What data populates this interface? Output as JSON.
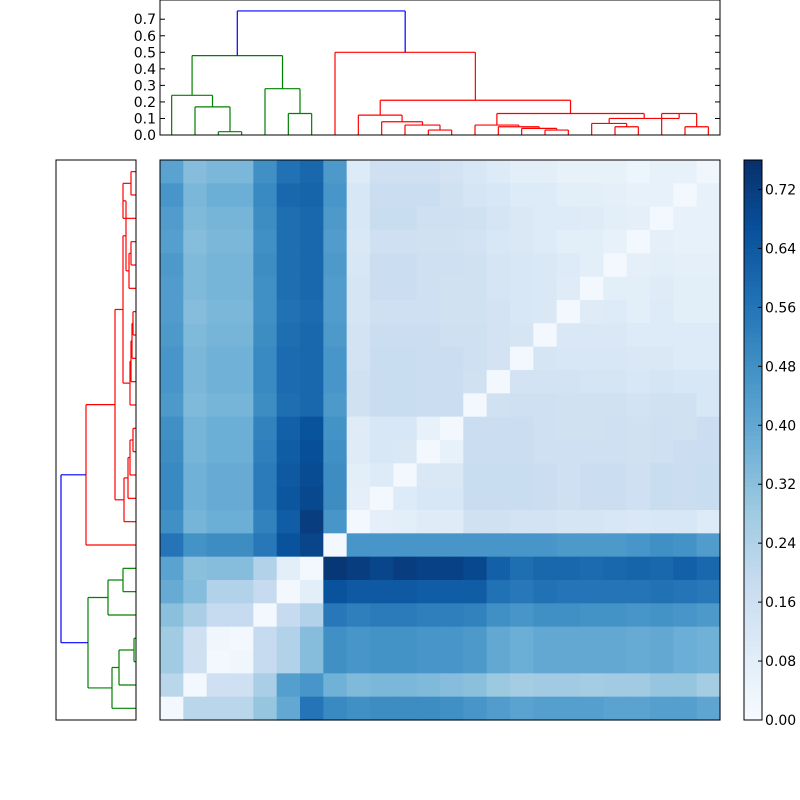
{
  "chart_data": {
    "type": "heatmap",
    "title": "",
    "size": 24,
    "colormap": "Blues",
    "colorbar": {
      "vmin": 0.0,
      "vmax": 0.76,
      "ticks": [
        "0.00",
        "0.08",
        "0.16",
        "0.24",
        "0.32",
        "0.40",
        "0.48",
        "0.56",
        "0.64",
        "0.72"
      ]
    },
    "dendrogram_top": {
      "ylim": [
        0,
        0.78
      ],
      "ticks": [
        "0.0",
        "0.1",
        "0.2",
        "0.3",
        "0.4",
        "0.5",
        "0.6",
        "0.7"
      ],
      "colors": {
        "cluster_a": "#008000",
        "cluster_b": "#ff0000",
        "root": "#0000ff"
      }
    },
    "dendrogram_left": {
      "colors": {
        "cluster_a": "#008000",
        "cluster_b": "#ff0000",
        "root": "#0000ff"
      }
    },
    "cluster_sizes": {
      "cluster_a": 7,
      "cluster_b": 17
    },
    "matrix": [
      [
        0.42,
        0.33,
        0.35,
        0.35,
        0.48,
        0.57,
        0.6,
        0.45,
        0.1,
        0.16,
        0.16,
        0.16,
        0.14,
        0.12,
        0.1,
        0.08,
        0.08,
        0.06,
        0.06,
        0.06,
        0.04,
        0.06,
        0.06,
        0.03
      ],
      [
        0.46,
        0.35,
        0.38,
        0.38,
        0.5,
        0.6,
        0.61,
        0.46,
        0.12,
        0.17,
        0.17,
        0.17,
        0.15,
        0.13,
        0.12,
        0.1,
        0.1,
        0.08,
        0.08,
        0.07,
        0.06,
        0.06,
        0.02,
        0.06
      ],
      [
        0.44,
        0.34,
        0.36,
        0.36,
        0.49,
        0.58,
        0.6,
        0.45,
        0.12,
        0.18,
        0.18,
        0.16,
        0.16,
        0.15,
        0.13,
        0.11,
        0.1,
        0.1,
        0.09,
        0.08,
        0.07,
        0.02,
        0.06,
        0.06
      ],
      [
        0.43,
        0.33,
        0.35,
        0.35,
        0.48,
        0.58,
        0.6,
        0.44,
        0.11,
        0.16,
        0.16,
        0.15,
        0.15,
        0.14,
        0.12,
        0.11,
        0.1,
        0.08,
        0.08,
        0.06,
        0.02,
        0.07,
        0.06,
        0.06
      ],
      [
        0.45,
        0.34,
        0.36,
        0.36,
        0.49,
        0.58,
        0.6,
        0.45,
        0.12,
        0.17,
        0.17,
        0.16,
        0.16,
        0.15,
        0.13,
        0.12,
        0.11,
        0.1,
        0.08,
        0.02,
        0.07,
        0.08,
        0.07,
        0.07
      ],
      [
        0.44,
        0.34,
        0.36,
        0.36,
        0.48,
        0.58,
        0.6,
        0.44,
        0.13,
        0.17,
        0.17,
        0.16,
        0.15,
        0.15,
        0.13,
        0.12,
        0.11,
        0.09,
        0.02,
        0.08,
        0.08,
        0.09,
        0.08,
        0.08
      ],
      [
        0.44,
        0.33,
        0.35,
        0.35,
        0.48,
        0.57,
        0.59,
        0.44,
        0.13,
        0.16,
        0.16,
        0.16,
        0.15,
        0.15,
        0.14,
        0.12,
        0.11,
        0.02,
        0.09,
        0.1,
        0.08,
        0.1,
        0.08,
        0.08
      ],
      [
        0.45,
        0.34,
        0.36,
        0.36,
        0.49,
        0.58,
        0.6,
        0.45,
        0.14,
        0.17,
        0.17,
        0.17,
        0.16,
        0.16,
        0.14,
        0.13,
        0.02,
        0.11,
        0.11,
        0.11,
        0.1,
        0.1,
        0.1,
        0.1
      ],
      [
        0.46,
        0.35,
        0.37,
        0.37,
        0.5,
        0.59,
        0.6,
        0.46,
        0.14,
        0.18,
        0.18,
        0.17,
        0.17,
        0.16,
        0.14,
        0.02,
        0.13,
        0.12,
        0.12,
        0.12,
        0.11,
        0.11,
        0.1,
        0.1
      ],
      [
        0.46,
        0.35,
        0.37,
        0.37,
        0.5,
        0.59,
        0.6,
        0.46,
        0.15,
        0.18,
        0.18,
        0.17,
        0.17,
        0.15,
        0.02,
        0.14,
        0.14,
        0.14,
        0.13,
        0.13,
        0.12,
        0.13,
        0.12,
        0.12
      ],
      [
        0.45,
        0.34,
        0.36,
        0.36,
        0.49,
        0.58,
        0.6,
        0.45,
        0.15,
        0.18,
        0.18,
        0.17,
        0.17,
        0.02,
        0.15,
        0.16,
        0.16,
        0.15,
        0.15,
        0.15,
        0.14,
        0.15,
        0.15,
        0.12
      ],
      [
        0.48,
        0.36,
        0.38,
        0.38,
        0.52,
        0.62,
        0.66,
        0.47,
        0.09,
        0.12,
        0.12,
        0.06,
        0.02,
        0.17,
        0.17,
        0.17,
        0.16,
        0.15,
        0.15,
        0.16,
        0.15,
        0.16,
        0.15,
        0.17
      ],
      [
        0.49,
        0.36,
        0.38,
        0.38,
        0.53,
        0.63,
        0.67,
        0.48,
        0.09,
        0.12,
        0.11,
        0.02,
        0.06,
        0.17,
        0.17,
        0.17,
        0.16,
        0.16,
        0.16,
        0.16,
        0.15,
        0.16,
        0.17,
        0.17
      ],
      [
        0.5,
        0.37,
        0.39,
        0.39,
        0.54,
        0.64,
        0.68,
        0.49,
        0.08,
        0.1,
        0.02,
        0.11,
        0.11,
        0.18,
        0.18,
        0.18,
        0.17,
        0.16,
        0.17,
        0.17,
        0.16,
        0.18,
        0.17,
        0.18
      ],
      [
        0.5,
        0.37,
        0.39,
        0.39,
        0.54,
        0.65,
        0.69,
        0.49,
        0.07,
        0.02,
        0.1,
        0.12,
        0.12,
        0.18,
        0.18,
        0.18,
        0.17,
        0.16,
        0.17,
        0.17,
        0.16,
        0.18,
        0.17,
        0.18
      ],
      [
        0.48,
        0.36,
        0.38,
        0.38,
        0.52,
        0.63,
        0.72,
        0.46,
        0.02,
        0.07,
        0.08,
        0.09,
        0.09,
        0.15,
        0.15,
        0.14,
        0.14,
        0.13,
        0.13,
        0.12,
        0.11,
        0.12,
        0.12,
        0.1
      ],
      [
        0.56,
        0.47,
        0.49,
        0.49,
        0.55,
        0.66,
        0.7,
        0.02,
        0.46,
        0.46,
        0.46,
        0.46,
        0.46,
        0.46,
        0.46,
        0.46,
        0.46,
        0.45,
        0.45,
        0.45,
        0.46,
        0.48,
        0.47,
        0.44
      ],
      [
        0.42,
        0.32,
        0.33,
        0.33,
        0.24,
        0.08,
        0.02,
        0.74,
        0.72,
        0.7,
        0.72,
        0.71,
        0.71,
        0.69,
        0.62,
        0.58,
        0.6,
        0.6,
        0.59,
        0.6,
        0.61,
        0.6,
        0.62,
        0.6
      ],
      [
        0.39,
        0.33,
        0.24,
        0.24,
        0.19,
        0.02,
        0.08,
        0.66,
        0.64,
        0.64,
        0.64,
        0.63,
        0.63,
        0.63,
        0.57,
        0.55,
        0.57,
        0.56,
        0.56,
        0.56,
        0.56,
        0.57,
        0.56,
        0.55
      ],
      [
        0.32,
        0.26,
        0.19,
        0.19,
        0.02,
        0.19,
        0.24,
        0.55,
        0.53,
        0.54,
        0.54,
        0.53,
        0.53,
        0.52,
        0.48,
        0.46,
        0.48,
        0.48,
        0.47,
        0.47,
        0.46,
        0.47,
        0.46,
        0.45
      ],
      [
        0.28,
        0.16,
        0.03,
        0.02,
        0.19,
        0.24,
        0.33,
        0.48,
        0.46,
        0.47,
        0.47,
        0.46,
        0.46,
        0.45,
        0.4,
        0.38,
        0.4,
        0.4,
        0.4,
        0.4,
        0.39,
        0.4,
        0.38,
        0.37
      ],
      [
        0.28,
        0.16,
        0.02,
        0.03,
        0.19,
        0.24,
        0.33,
        0.48,
        0.46,
        0.47,
        0.47,
        0.46,
        0.46,
        0.45,
        0.4,
        0.38,
        0.4,
        0.4,
        0.4,
        0.4,
        0.39,
        0.4,
        0.38,
        0.37
      ],
      [
        0.22,
        0.02,
        0.16,
        0.16,
        0.26,
        0.43,
        0.46,
        0.37,
        0.34,
        0.35,
        0.35,
        0.34,
        0.33,
        0.32,
        0.29,
        0.27,
        0.28,
        0.28,
        0.27,
        0.28,
        0.28,
        0.3,
        0.3,
        0.27
      ],
      [
        0.02,
        0.22,
        0.22,
        0.22,
        0.3,
        0.4,
        0.56,
        0.5,
        0.48,
        0.49,
        0.49,
        0.49,
        0.48,
        0.46,
        0.44,
        0.42,
        0.43,
        0.43,
        0.43,
        0.42,
        0.42,
        0.43,
        0.43,
        0.41
      ]
    ]
  }
}
